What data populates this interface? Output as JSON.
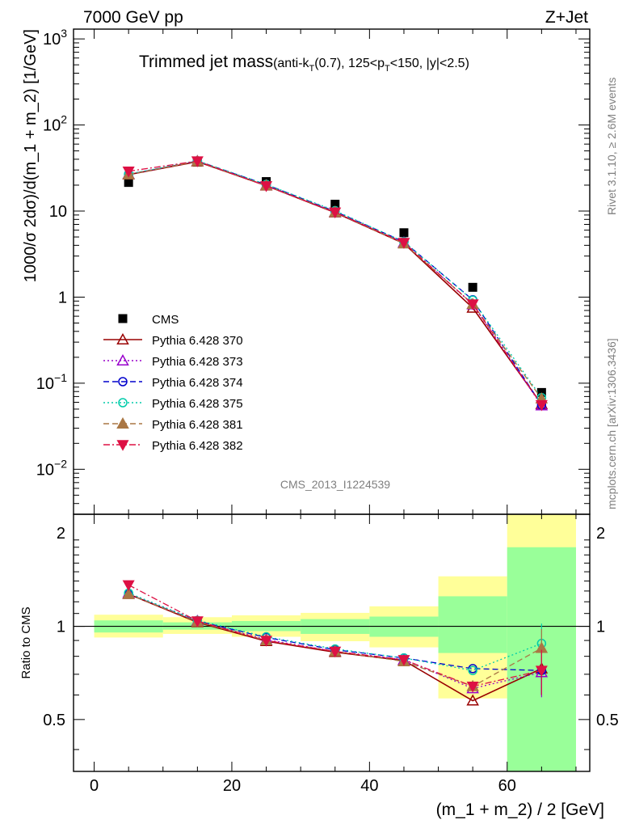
{
  "header": {
    "left": "7000 GeV pp",
    "right": "Z+Jet",
    "title_main": "Trimmed jet mass",
    "title_sub_prefix": "(anti-k",
    "title_sub_T1": "T",
    "title_sub_mid": "(0.7), 125<p",
    "title_sub_T2": "T",
    "title_sub_suffix": "<150, |y|<2.5)",
    "analysis_id": "CMS_2013_I1224539",
    "side_rivet": "Rivet 3.1.10, ≥ 2.6M events",
    "side_mcplots": "mcplots.cern.ch [arXiv:1306.3436]"
  },
  "chart_data": {
    "type": "line",
    "title": "Trimmed jet mass(anti-kT(0.7), 125<pT<150, |y|<2.5)",
    "xlabel": "(m_1 + m_2) / 2 [GeV]",
    "ylabel": "1000/σ 2dσ)/d(m_1 + m_2) [1/GeV]",
    "ratio_ylabel": "Ratio to CMS",
    "xlim": [
      -3,
      72
    ],
    "ylim": [
      0.003,
      1300
    ],
    "yscale": "log",
    "ratio_ylim": [
      0.34,
      2.3
    ],
    "ratio_yscale": "log",
    "x_ticks": [
      0,
      20,
      40,
      60
    ],
    "y_ticks": [
      {
        "value": 0.01,
        "base": "10",
        "exp": "−2"
      },
      {
        "value": 0.1,
        "base": "10",
        "exp": "−1"
      },
      {
        "value": 1,
        "base": "1",
        "exp": ""
      },
      {
        "value": 10,
        "base": "10",
        "exp": ""
      },
      {
        "value": 100,
        "base": "10",
        "exp": "2"
      },
      {
        "value": 1000,
        "base": "10",
        "exp": "3"
      }
    ],
    "ratio_ticks": [
      {
        "value": 0.5,
        "label": "0.5"
      },
      {
        "value": 1,
        "label": "1"
      },
      {
        "value": 2,
        "label": "2"
      }
    ],
    "x": [
      5,
      15,
      25,
      35,
      45,
      55,
      65
    ],
    "bin_edges": [
      0,
      10,
      20,
      30,
      40,
      50,
      60,
      70
    ],
    "data": {
      "name": "CMS",
      "values": [
        21.5,
        37,
        22,
        12,
        5.6,
        1.3,
        0.078
      ],
      "band_inner": [
        [
          0.955,
          1.045
        ],
        [
          0.975,
          1.03
        ],
        [
          0.965,
          1.04
        ],
        [
          0.945,
          1.055
        ],
        [
          0.925,
          1.075
        ],
        [
          0.82,
          1.25
        ],
        [
          0.34,
          1.8
        ]
      ],
      "band_outer": [
        [
          0.92,
          1.09
        ],
        [
          0.945,
          1.07
        ],
        [
          0.925,
          1.085
        ],
        [
          0.895,
          1.105
        ],
        [
          0.855,
          1.16
        ],
        [
          0.585,
          1.45
        ],
        [
          0.34,
          2.3
        ]
      ]
    },
    "series": [
      {
        "name": "Pythia 6.428 370",
        "color": "#990000",
        "marker": "triangle-open",
        "dash": "",
        "values": [
          26.5,
          37.5,
          19.7,
          9.6,
          4.2,
          0.75,
          0.057
        ],
        "ratio": [
          1.27,
          1.03,
          0.895,
          0.825,
          0.775,
          0.575,
          0.73
        ],
        "ratio_err": [
          0,
          0,
          0,
          0,
          0,
          0,
          0.13
        ]
      },
      {
        "name": "Pythia 6.428 373",
        "color": "#9900cc",
        "marker": "triangle-open",
        "dash": "2,3",
        "values": [
          26.8,
          38,
          19.9,
          9.7,
          4.3,
          0.82,
          0.055
        ],
        "ratio": [
          1.28,
          1.04,
          0.905,
          0.83,
          0.78,
          0.63,
          0.71
        ],
        "ratio_err": [
          0,
          0,
          0,
          0,
          0,
          0,
          0.12
        ]
      },
      {
        "name": "Pythia 6.428 374",
        "color": "#0000cc",
        "marker": "circle-open",
        "dash": "7,4",
        "values": [
          26.7,
          38.2,
          20.3,
          9.9,
          4.4,
          0.93,
          0.056
        ],
        "ratio": [
          1.27,
          1.04,
          0.92,
          0.84,
          0.79,
          0.73,
          0.72
        ],
        "ratio_err": [
          0,
          0,
          0,
          0,
          0,
          0,
          0.12
        ]
      },
      {
        "name": "Pythia 6.428 375",
        "color": "#00ccaa",
        "marker": "circle-open",
        "dash": "2,3",
        "values": [
          26.9,
          38.4,
          20.4,
          10.1,
          4.4,
          0.92,
          0.068
        ],
        "ratio": [
          1.28,
          1.045,
          0.925,
          0.845,
          0.79,
          0.72,
          0.88
        ],
        "ratio_err": [
          0,
          0,
          0,
          0,
          0,
          0,
          0.14
        ]
      },
      {
        "name": "Pythia 6.428 381",
        "color": "#aa7744",
        "marker": "triangle-filled",
        "dash": "7,4",
        "values": [
          26.6,
          37.8,
          19.8,
          9.7,
          4.2,
          0.83,
          0.066
        ],
        "ratio": [
          1.27,
          1.035,
          0.9,
          0.83,
          0.77,
          0.64,
          0.85
        ],
        "ratio_err": [
          0,
          0,
          0,
          0,
          0,
          0,
          0.13
        ]
      },
      {
        "name": "Pythia 6.428 382",
        "color": "#dd1144",
        "marker": "triangle-down-filled",
        "dash": "8,3,2,3",
        "values": [
          29,
          38.1,
          19.6,
          9.7,
          4.3,
          0.83,
          0.056
        ],
        "ratio": [
          1.36,
          1.04,
          0.9,
          0.83,
          0.78,
          0.64,
          0.72
        ],
        "ratio_err": [
          0,
          0,
          0,
          0,
          0,
          0,
          0.12
        ]
      }
    ],
    "legend_position": "lower-left",
    "grid": false
  }
}
